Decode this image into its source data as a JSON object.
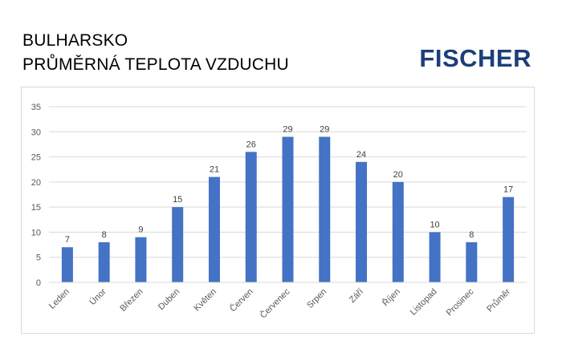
{
  "title": {
    "line1": "BULHARSKO",
    "line2": "PRŮMĚRNÁ TEPLOTA VZDUCHU"
  },
  "logo": {
    "text": "FISCHER",
    "color": "#1c3f7a"
  },
  "chart_data": {
    "type": "bar",
    "title": "",
    "xlabel": "",
    "ylabel": "",
    "categories": [
      "Leden",
      "Únor",
      "Březen",
      "Duben",
      "Květen",
      "Červen",
      "Červenec",
      "Srpen",
      "Září",
      "Říjen",
      "Listopad",
      "Prosinec",
      "Průměr"
    ],
    "values": [
      7,
      8,
      9,
      15,
      21,
      26,
      29,
      29,
      24,
      20,
      10,
      8,
      17
    ],
    "ylim": [
      0,
      35
    ],
    "yticks": [
      0,
      5,
      10,
      15,
      20,
      25,
      30,
      35
    ],
    "grid": true,
    "data_labels": true,
    "bar_color": "#4472c4"
  }
}
